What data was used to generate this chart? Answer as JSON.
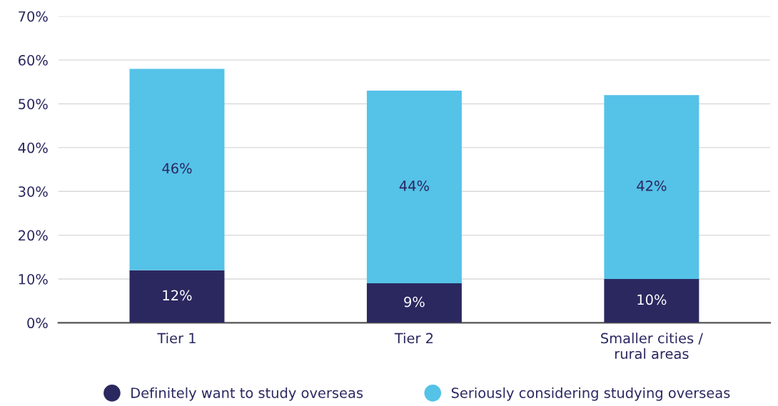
{
  "chart_data": {
    "type": "bar",
    "stacked": true,
    "categories": [
      "Tier 1",
      "Tier 2",
      "Smaller cities /\nrural areas"
    ],
    "series": [
      {
        "name": "Definitely want to study overseas",
        "color": "#2b2860",
        "values": [
          12,
          9,
          10
        ],
        "value_labels": [
          "12%",
          "9%",
          "10%"
        ]
      },
      {
        "name": "Seriously considering studying overseas",
        "color": "#55c2e8",
        "values": [
          46,
          44,
          42
        ],
        "value_labels": [
          "46%",
          "44%",
          "42%"
        ]
      }
    ],
    "ylim": [
      0,
      70
    ],
    "yticks": [
      {
        "value": 0,
        "label": "0%"
      },
      {
        "value": 10,
        "label": "10%"
      },
      {
        "value": 20,
        "label": "20%"
      },
      {
        "value": 30,
        "label": "30%"
      },
      {
        "value": 40,
        "label": "40%"
      },
      {
        "value": 50,
        "label": "50%"
      },
      {
        "value": 60,
        "label": "60%"
      },
      {
        "value": 70,
        "label": "70%"
      }
    ],
    "grid": "y",
    "legend": "bottom"
  }
}
